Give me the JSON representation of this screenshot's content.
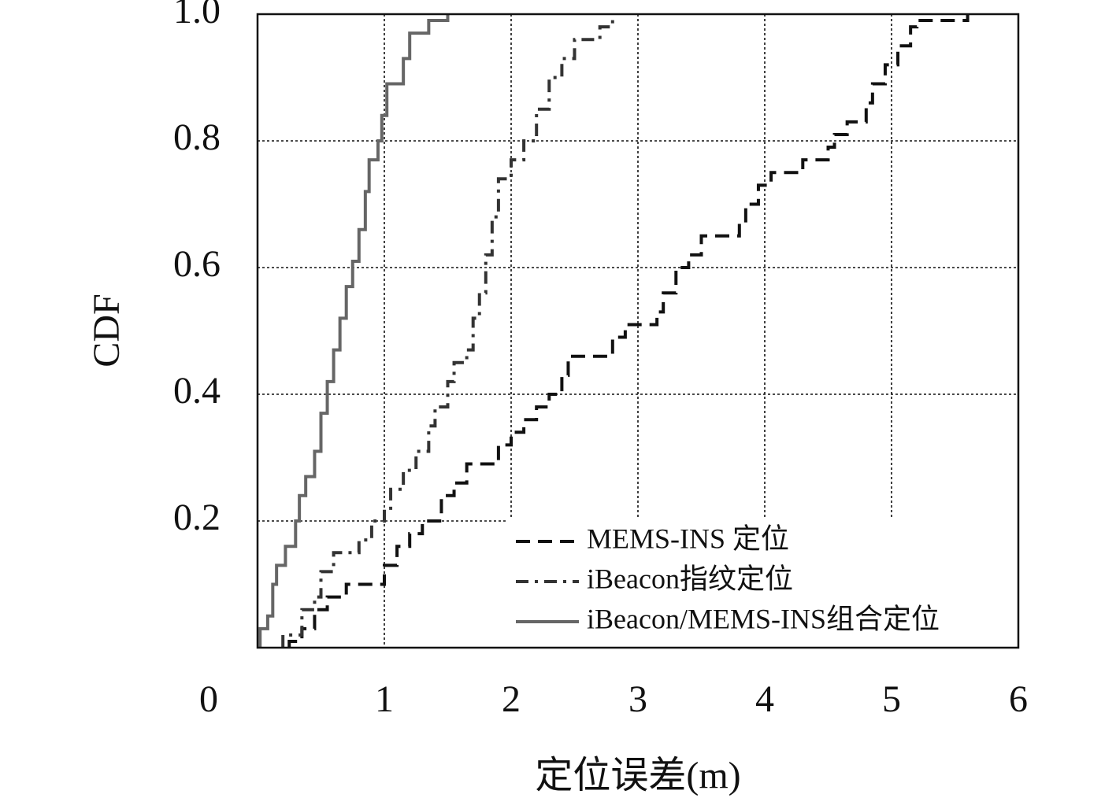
{
  "chart_data": {
    "type": "line",
    "drawstyle": "steps",
    "xlabel": "定位误差(m)",
    "ylabel": "CDF",
    "xlim": [
      0,
      6
    ],
    "ylim": [
      0,
      1
    ],
    "xticks": [
      0,
      1,
      2,
      3,
      4,
      5,
      6
    ],
    "yticks": [
      0.2,
      0.4,
      0.6,
      0.8,
      {
        "value": 1,
        "label": "1.0"
      }
    ],
    "grid": true,
    "legend": "lower right",
    "series": [
      {
        "name": "MEMS-INS 定位",
        "color": "#111111",
        "dash": "dashed",
        "x": [
          0.25,
          0.35,
          0.45,
          0.55,
          0.7,
          1.0,
          1.1,
          1.2,
          1.3,
          1.45,
          1.55,
          1.65,
          1.9,
          2.0,
          2.1,
          2.2,
          2.3,
          2.4,
          2.45,
          2.8,
          2.9,
          3.15,
          3.2,
          3.3,
          3.4,
          3.5,
          3.8,
          3.85,
          3.95,
          4.05,
          4.3,
          4.5,
          4.55,
          4.65,
          4.8,
          4.85,
          4.95,
          5.05,
          5.15,
          5.2,
          5.6
        ],
        "values": [
          0.01,
          0.03,
          0.06,
          0.08,
          0.1,
          0.13,
          0.16,
          0.18,
          0.2,
          0.24,
          0.26,
          0.29,
          0.32,
          0.34,
          0.36,
          0.38,
          0.4,
          0.43,
          0.46,
          0.49,
          0.51,
          0.53,
          0.56,
          0.6,
          0.62,
          0.65,
          0.67,
          0.7,
          0.73,
          0.75,
          0.77,
          0.79,
          0.81,
          0.83,
          0.86,
          0.89,
          0.92,
          0.95,
          0.98,
          0.99,
          1.0
        ]
      },
      {
        "name": "iBeacon指纹定位",
        "color": "#333333",
        "dash": "dashdot",
        "x": [
          0.2,
          0.35,
          0.45,
          0.5,
          0.6,
          0.8,
          0.9,
          1.0,
          1.05,
          1.15,
          1.25,
          1.35,
          1.4,
          1.5,
          1.55,
          1.65,
          1.7,
          1.75,
          1.8,
          1.85,
          1.9,
          2.0,
          2.1,
          2.2,
          2.3,
          2.4,
          2.5,
          2.7,
          2.8
        ],
        "values": [
          0.02,
          0.06,
          0.08,
          0.12,
          0.15,
          0.17,
          0.2,
          0.22,
          0.25,
          0.28,
          0.31,
          0.35,
          0.38,
          0.42,
          0.45,
          0.47,
          0.52,
          0.56,
          0.62,
          0.68,
          0.74,
          0.77,
          0.8,
          0.85,
          0.9,
          0.93,
          0.96,
          0.98,
          1.0
        ]
      },
      {
        "name": "iBeacon/MEMS-INS组合定位",
        "color": "#666666",
        "dash": "solid",
        "x": [
          0.02,
          0.08,
          0.12,
          0.15,
          0.22,
          0.3,
          0.33,
          0.38,
          0.45,
          0.5,
          0.55,
          0.6,
          0.65,
          0.7,
          0.75,
          0.8,
          0.85,
          0.88,
          0.95,
          0.98,
          1.02,
          1.15,
          1.2,
          1.35,
          1.5
        ],
        "values": [
          0.03,
          0.05,
          0.1,
          0.13,
          0.16,
          0.2,
          0.24,
          0.27,
          0.31,
          0.37,
          0.42,
          0.47,
          0.52,
          0.57,
          0.61,
          0.66,
          0.72,
          0.77,
          0.8,
          0.84,
          0.89,
          0.93,
          0.97,
          0.99,
          1.0
        ]
      }
    ]
  }
}
